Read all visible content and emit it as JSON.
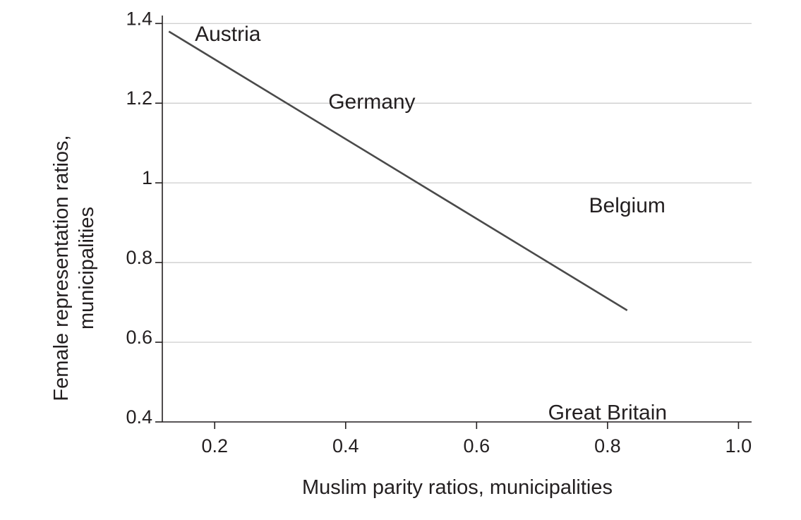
{
  "chart_data": {
    "type": "line",
    "xlabel": "Muslim parity ratios, municipalities",
    "ylabel_lines": [
      "Female representation ratios,",
      "municipalities"
    ],
    "xlim": [
      0.12,
      1.02
    ],
    "ylim": [
      0.4,
      1.42
    ],
    "x_ticks": [
      {
        "value": 0.2,
        "label": "0.2"
      },
      {
        "value": 0.4,
        "label": "0.4"
      },
      {
        "value": 0.6,
        "label": "0.6"
      },
      {
        "value": 0.8,
        "label": "0.8"
      },
      {
        "value": 1.0,
        "label": "1.0"
      }
    ],
    "y_ticks": [
      {
        "value": 0.4,
        "label": "0.4"
      },
      {
        "value": 0.6,
        "label": "0.6"
      },
      {
        "value": 0.8,
        "label": "0.8"
      },
      {
        "value": 1.0,
        "label": "1"
      },
      {
        "value": 1.2,
        "label": "1.2"
      },
      {
        "value": 1.4,
        "label": "1.4"
      }
    ],
    "grid": "horizontal",
    "points": [
      {
        "label": "Austria",
        "x": 0.22,
        "y": 1.37
      },
      {
        "label": "Germany",
        "x": 0.44,
        "y": 1.2
      },
      {
        "label": "Belgium",
        "x": 0.83,
        "y": 0.94
      },
      {
        "label": "Great Britain",
        "x": 0.8,
        "y": 0.42
      }
    ],
    "fit_line": [
      {
        "x": 0.13,
        "y": 1.38
      },
      {
        "x": 0.83,
        "y": 0.68
      }
    ],
    "colors": {
      "line": "#4a4a4a",
      "grid": "#c8c8c8",
      "text": "#231f20"
    }
  }
}
